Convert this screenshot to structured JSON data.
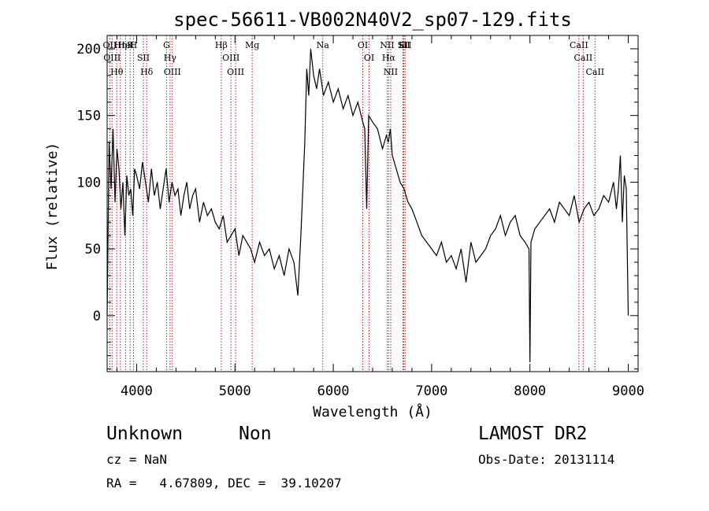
{
  "chart_data": {
    "type": "line",
    "title": "spec-56611-VB002N40V2_sp07-129.fits",
    "xlabel": "Wavelength (Å)",
    "ylabel": "Flux (relative)",
    "xlim": [
      3700,
      9100
    ],
    "ylim": [
      -42,
      210
    ],
    "xticks": [
      4000,
      5000,
      6000,
      7000,
      8000,
      9000
    ],
    "yticks": [
      0,
      50,
      100,
      150,
      200
    ],
    "grid": false,
    "line_color": "#000000",
    "marker_color": "#b22222",
    "series": [
      {
        "x": [
          3700,
          3720,
          3740,
          3760,
          3780,
          3800,
          3820,
          3840,
          3860,
          3880,
          3900,
          3920,
          3940,
          3960,
          3980,
          4000,
          4030,
          4060,
          4090,
          4120,
          4150,
          4180,
          4210,
          4240,
          4270,
          4300,
          4330,
          4360,
          4390,
          4420,
          4450,
          4480,
          4510,
          4540,
          4570,
          4600,
          4640,
          4680,
          4720,
          4760,
          4800,
          4840,
          4880,
          4920,
          4960,
          5000,
          5040,
          5080,
          5120,
          5160,
          5200,
          5250,
          5300,
          5350,
          5400,
          5450,
          5500,
          5550,
          5600,
          5640,
          5670,
          5690,
          5710,
          5730,
          5750,
          5770,
          5800,
          5830,
          5860,
          5900,
          5950,
          6000,
          6050,
          6100,
          6150,
          6200,
          6250,
          6300,
          6320,
          6340,
          6360,
          6400,
          6450,
          6500,
          6540,
          6560,
          6580,
          6600,
          6640,
          6680,
          6720,
          6760,
          6800,
          6850,
          6900,
          6950,
          7000,
          7050,
          7100,
          7150,
          7200,
          7250,
          7300,
          7350,
          7400,
          7450,
          7500,
          7550,
          7600,
          7650,
          7700,
          7750,
          7800,
          7850,
          7900,
          7950,
          7990,
          8000,
          8010,
          8050,
          8100,
          8150,
          8200,
          8250,
          8300,
          8350,
          8400,
          8450,
          8500,
          8550,
          8600,
          8650,
          8700,
          8750,
          8800,
          8850,
          8880,
          8900,
          8920,
          8940,
          8960,
          8980,
          9000
        ],
        "y": [
          0,
          130,
          95,
          140,
          85,
          125,
          110,
          80,
          100,
          60,
          105,
          90,
          95,
          75,
          110,
          105,
          95,
          115,
          100,
          85,
          110,
          90,
          100,
          80,
          95,
          110,
          85,
          100,
          90,
          95,
          75,
          90,
          100,
          80,
          90,
          95,
          70,
          85,
          75,
          80,
          70,
          65,
          75,
          55,
          60,
          65,
          45,
          60,
          55,
          50,
          40,
          55,
          45,
          50,
          35,
          45,
          30,
          50,
          40,
          15,
          60,
          95,
          130,
          185,
          165,
          200,
          180,
          170,
          185,
          165,
          175,
          160,
          170,
          155,
          165,
          150,
          160,
          145,
          140,
          80,
          150,
          145,
          140,
          125,
          135,
          130,
          140,
          120,
          110,
          100,
          95,
          85,
          80,
          70,
          60,
          55,
          50,
          45,
          55,
          40,
          45,
          35,
          50,
          25,
          55,
          40,
          45,
          50,
          60,
          65,
          75,
          60,
          70,
          75,
          60,
          55,
          50,
          -35,
          55,
          65,
          70,
          75,
          80,
          70,
          85,
          80,
          75,
          90,
          70,
          80,
          85,
          75,
          80,
          90,
          85,
          100,
          80,
          95,
          120,
          70,
          105,
          95,
          0
        ]
      }
    ],
    "lines": [
      {
        "label": "Hθ",
        "x": 3798
      },
      {
        "label": "OII",
        "x": 3727
      },
      {
        "label": "OIII",
        "x": 3750
      },
      {
        "label": "K",
        "x": 3934
      },
      {
        "label": "HeI",
        "x": 3889
      },
      {
        "label": "Hη",
        "x": 3835
      },
      {
        "label": "SII",
        "x": 4068
      },
      {
        "label": "H",
        "x": 3968
      },
      {
        "label": "Hδ",
        "x": 4102
      },
      {
        "label": "OIII",
        "x": 4363
      },
      {
        "label": "Hγ",
        "x": 4340
      },
      {
        "label": "G",
        "x": 4304
      },
      {
        "label": "Hβ",
        "x": 4861
      },
      {
        "label": "OIII",
        "x": 5007
      },
      {
        "label": "OIII",
        "x": 4959
      },
      {
        "label": "Mg",
        "x": 5175
      },
      {
        "label": "Na",
        "x": 5893
      },
      {
        "label": "OI",
        "x": 6300
      },
      {
        "label": "OI",
        "x": 6364
      },
      {
        "label": "Hα",
        "x": 6563
      },
      {
        "label": "NII",
        "x": 6548
      },
      {
        "label": "NII",
        "x": 6584
      },
      {
        "label": "SII",
        "x": 6717
      },
      {
        "label": "Li",
        "x": 6708
      },
      {
        "label": "SII",
        "x": 6731
      },
      {
        "label": "CaII",
        "x": 8498
      },
      {
        "label": "CaII",
        "x": 8542
      },
      {
        "label": "CaII",
        "x": 8662
      }
    ]
  },
  "footer": {
    "object_class": "Unknown",
    "subclass": "Non",
    "survey": "LAMOST DR2",
    "redshift": "cz = NaN",
    "obs_date": "Obs-Date: 20131114",
    "coordinates": "RA =   4.67809, DEC =  39.10207"
  }
}
